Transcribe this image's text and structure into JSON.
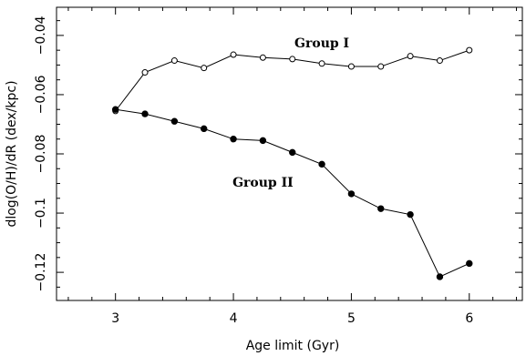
{
  "chart_data": {
    "type": "line",
    "title": "",
    "xlabel": "Age limit (Gyr)",
    "ylabel": "dlog(O/H)/dR (dex/kpc)",
    "xlim": [
      2.5,
      6.45
    ],
    "ylim": [
      -0.1295,
      -0.0305
    ],
    "x_ticks": [
      3,
      4,
      5,
      6
    ],
    "x_tick_labels": [
      "3",
      "4",
      "5",
      "6"
    ],
    "y_ticks": [
      -0.12,
      -0.1,
      -0.08,
      -0.06,
      -0.04
    ],
    "y_tick_labels": [
      "−0.12",
      "−0.1",
      "−0.08",
      "−0.06",
      "−0.04"
    ],
    "grid": false,
    "series": [
      {
        "name": "Group I",
        "marker": "open-circle",
        "x": [
          3,
          3.25,
          3.5,
          3.75,
          4,
          4.25,
          4.5,
          4.75,
          5,
          5.25,
          5.5,
          5.75,
          6
        ],
        "y": [
          -0.0655,
          -0.0525,
          -0.0485,
          -0.051,
          -0.0465,
          -0.0475,
          -0.048,
          -0.0495,
          -0.0505,
          -0.0505,
          -0.047,
          -0.0485,
          -0.045
        ]
      },
      {
        "name": "Group II",
        "marker": "filled-circle",
        "x": [
          3,
          3.25,
          3.5,
          3.75,
          4,
          4.25,
          4.5,
          4.75,
          5,
          5.25,
          5.5,
          5.75,
          6
        ],
        "y": [
          -0.065,
          -0.0665,
          -0.069,
          -0.0715,
          -0.075,
          -0.0755,
          -0.0795,
          -0.0835,
          -0.0935,
          -0.0985,
          -0.1005,
          -0.1215,
          -0.117
        ]
      }
    ],
    "annotations": [
      {
        "text": "Group I",
        "x": 4.75,
        "y": -0.0425
      },
      {
        "text": "Group II",
        "x": 4.25,
        "y": -0.0895
      }
    ]
  }
}
